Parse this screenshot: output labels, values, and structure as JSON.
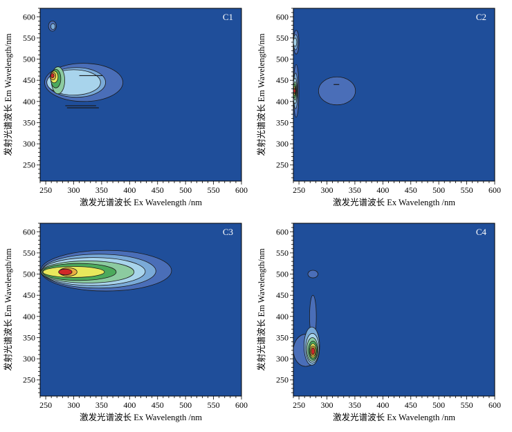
{
  "figure": {
    "colors": {
      "background": "#1f4e9a",
      "levels": [
        "#4a6eb8",
        "#7aaad8",
        "#a8d4ec",
        "#8ccba0",
        "#4caa5c",
        "#e8e85c",
        "#e8b040",
        "#d02828"
      ],
      "contour_line": "#1a1a1a"
    }
  },
  "chart_data": [
    {
      "type": "contour",
      "panel_label": "C1",
      "xlabel": "激发光谱波长 Ex Wavelength /nm",
      "ylabel": "发射光谱波长 Em Wavelength/nm",
      "xlim": [
        240,
        600
      ],
      "ylim": [
        212,
        620
      ],
      "xticks": [
        250,
        300,
        350,
        400,
        450,
        500,
        550,
        600
      ],
      "yticks": [
        250,
        300,
        350,
        400,
        450,
        500,
        550,
        600
      ],
      "peaks": [
        {
          "ex": 262,
          "em": 460,
          "max_level": 8,
          "note": "primary peak"
        },
        {
          "ex": 300,
          "em": 445,
          "max_level": 3,
          "note": "plateau extending to Ex 400"
        },
        {
          "ex": 262,
          "em": 578,
          "max_level": 1,
          "note": "minor component"
        }
      ]
    },
    {
      "type": "contour",
      "panel_label": "C2",
      "xlabel": "激发光谱波长 Ex Wavelength /nm",
      "ylabel": "发射光谱波长 Em Wavelength/nm",
      "xlim": [
        240,
        600
      ],
      "ylim": [
        212,
        620
      ],
      "xticks": [
        250,
        300,
        350,
        400,
        450,
        500,
        550,
        600
      ],
      "yticks": [
        250,
        300,
        350,
        400,
        450,
        500,
        550,
        600
      ],
      "peaks": [
        {
          "ex": 242,
          "em": 425,
          "max_level": 8,
          "note": "peak at left edge"
        },
        {
          "ex": 242,
          "em": 540,
          "max_level": 2,
          "note": "secondary edge component"
        },
        {
          "ex": 318,
          "em": 425,
          "max_level": 1,
          "note": "isolated weak component"
        }
      ]
    },
    {
      "type": "contour",
      "panel_label": "C3",
      "xlabel": "激发光谱波长 Ex Wavelength /nm",
      "ylabel": "发射光谱波长 Em Wavelength/nm",
      "xlim": [
        240,
        600
      ],
      "ylim": [
        212,
        620
      ],
      "xticks": [
        250,
        300,
        350,
        400,
        450,
        500,
        550,
        600
      ],
      "yticks": [
        250,
        300,
        350,
        400,
        450,
        500,
        550,
        600
      ],
      "peaks": [
        {
          "ex": 285,
          "em": 505,
          "max_level": 8,
          "note": "primary peak, extended along Ex to ~470"
        }
      ]
    },
    {
      "type": "contour",
      "panel_label": "C4",
      "xlabel": "激发光谱波长 Ex Wavelength /nm",
      "ylabel": "发射光谱波长 Em Wavelength/nm",
      "xlim": [
        240,
        600
      ],
      "ylim": [
        212,
        620
      ],
      "xticks": [
        250,
        300,
        350,
        400,
        450,
        500,
        550,
        600
      ],
      "yticks": [
        250,
        300,
        350,
        400,
        450,
        500,
        550,
        600
      ],
      "peaks": [
        {
          "ex": 275,
          "em": 318,
          "max_level": 8,
          "note": "primary peak"
        },
        {
          "ex": 275,
          "em": 500,
          "max_level": 1,
          "note": "minor component"
        }
      ]
    }
  ]
}
